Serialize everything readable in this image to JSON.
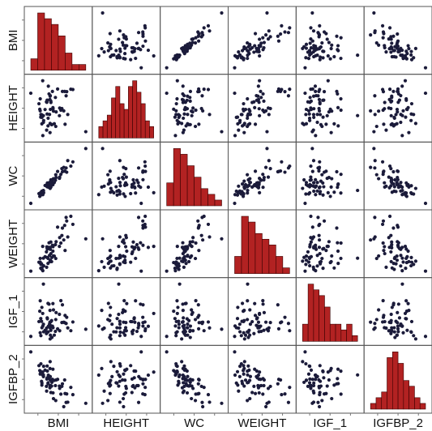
{
  "chart_data": {
    "type": "scatter",
    "title": "",
    "variables": [
      "BMI",
      "HEIGHT",
      "WC",
      "WEIGHT",
      "IGF_1",
      "IGFBP_2"
    ],
    "colors": {
      "point": "#1b1b3a",
      "bar_fill": "#b22222",
      "bar_stroke": "#3a0000",
      "grid_border": "#555555",
      "tick": "#777777"
    },
    "histograms": [
      [
        2,
        10,
        9,
        8,
        6,
        3,
        1,
        1
      ],
      [
        2,
        3,
        4,
        7,
        9,
        6,
        5,
        9,
        10,
        8,
        6,
        3,
        2
      ],
      [
        4,
        10,
        9,
        7,
        5,
        3,
        2,
        1
      ],
      [
        3,
        10,
        9,
        7,
        6,
        5,
        3,
        1
      ],
      [
        3,
        10,
        9,
        8,
        6,
        3,
        3,
        2,
        3,
        1
      ],
      [
        1,
        2,
        3,
        9,
        10,
        8,
        5,
        4,
        2,
        1
      ]
    ],
    "scatter_points": {
      "count": 60,
      "note": "pairwise scatter of the six variables (BMI, HEIGHT, WC, WEIGHT, IGF_1, IGFBP_2)",
      "marker": "filled circle"
    }
  }
}
